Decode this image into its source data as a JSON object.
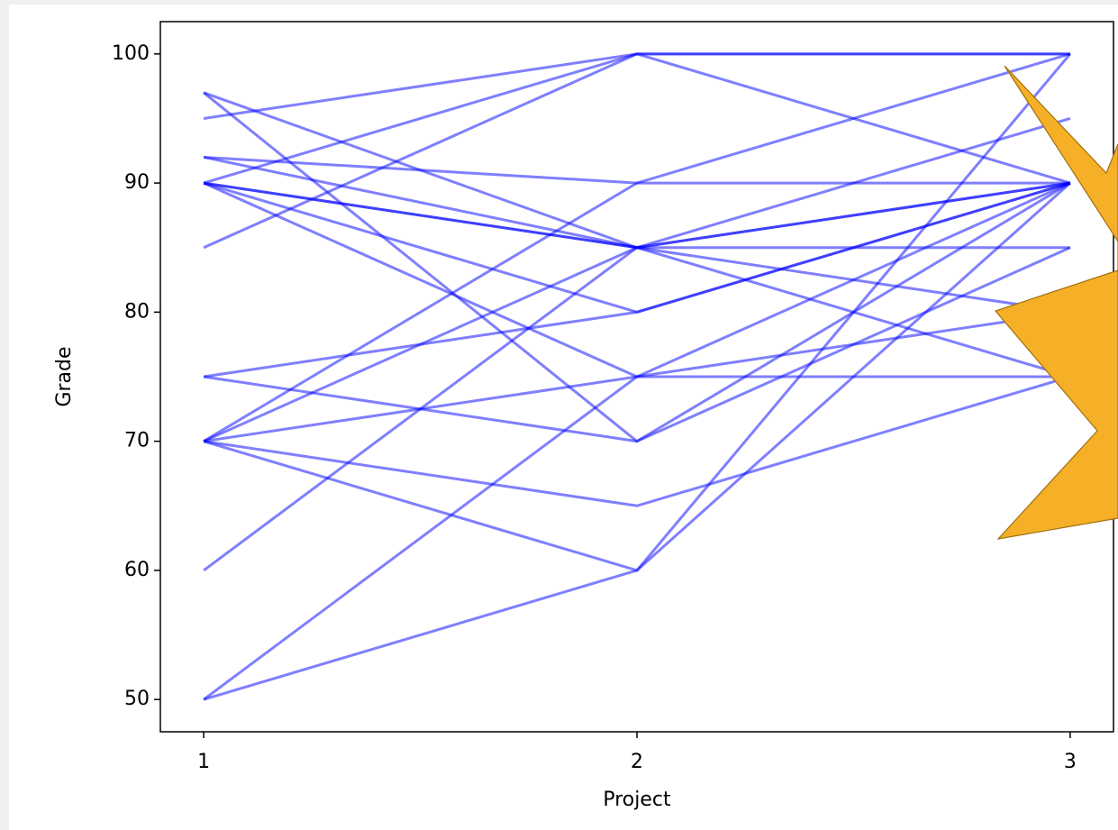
{
  "chart_data": {
    "type": "line",
    "xlabel": "Project",
    "ylabel": "Grade",
    "x": [
      1,
      2,
      3
    ],
    "color": "#0000ff",
    "alpha": 0.5,
    "series": [
      {
        "values": [
          95,
          100,
          100
        ]
      },
      {
        "values": [
          90,
          100,
          100
        ]
      },
      {
        "values": [
          85,
          100,
          90
        ]
      },
      {
        "values": [
          97,
          85,
          75
        ]
      },
      {
        "values": [
          97,
          70,
          85
        ]
      },
      {
        "values": [
          92,
          90,
          90
        ]
      },
      {
        "values": [
          92,
          85,
          80
        ]
      },
      {
        "values": [
          90,
          75,
          80
        ]
      },
      {
        "values": [
          90,
          85,
          85
        ]
      },
      {
        "values": [
          90,
          80,
          90
        ]
      },
      {
        "values": [
          90,
          85,
          90
        ]
      },
      {
        "values": [
          75,
          80,
          90
        ]
      },
      {
        "values": [
          75,
          70,
          90
        ]
      },
      {
        "values": [
          70,
          90,
          100
        ]
      },
      {
        "values": [
          70,
          85,
          90
        ]
      },
      {
        "values": [
          70,
          75,
          75
        ]
      },
      {
        "values": [
          70,
          65,
          75
        ]
      },
      {
        "values": [
          70,
          60,
          90
        ]
      },
      {
        "values": [
          60,
          85,
          95
        ]
      },
      {
        "values": [
          50,
          75,
          90
        ]
      },
      {
        "values": [
          50,
          60,
          100
        ]
      }
    ],
    "xlim": [
      0.9,
      3.1
    ],
    "ylim": [
      47.5,
      102.5
    ],
    "xticks": [
      1,
      2,
      3
    ],
    "yticks": [
      50,
      60,
      70,
      80,
      90,
      100
    ]
  }
}
